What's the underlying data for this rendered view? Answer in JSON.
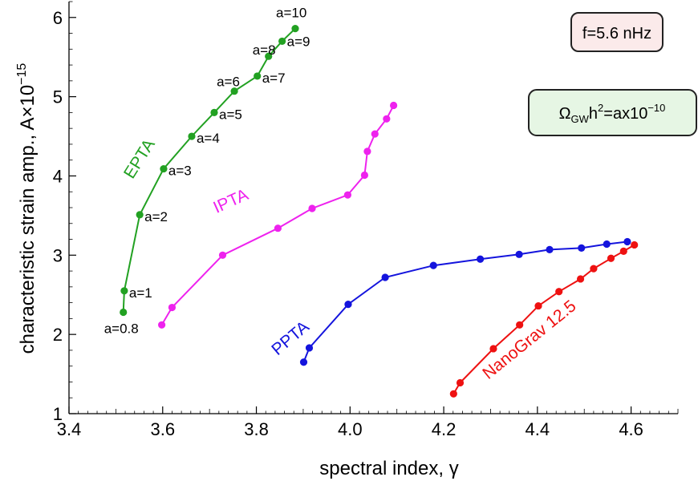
{
  "chart_data": {
    "type": "line",
    "xlabel": "spectral index, γ",
    "ylabel": "characteristic strain amp., A×10",
    "ylabel_exponent": "−15",
    "xlim": [
      3.4,
      4.7
    ],
    "ylim": [
      1.0,
      6.2
    ],
    "xticks": [
      "3.4",
      "3.6",
      "3.8",
      "4.0",
      "4.2",
      "4.4",
      "4.6"
    ],
    "yticks": [
      "1",
      "2",
      "3",
      "4",
      "5",
      "6"
    ],
    "grid": false,
    "series": [
      {
        "name": "EPTA",
        "color": "#22a122",
        "points": [
          [
            3.516,
            2.28
          ],
          [
            3.518,
            2.55
          ],
          [
            3.551,
            3.51
          ],
          [
            3.602,
            4.09
          ],
          [
            3.662,
            4.5
          ],
          [
            3.71,
            4.8
          ],
          [
            3.753,
            5.07
          ],
          [
            3.802,
            5.26
          ],
          [
            3.826,
            5.51
          ],
          [
            3.855,
            5.7
          ],
          [
            3.883,
            5.86
          ]
        ],
        "point_labels": [
          "a=0.8",
          "a=1",
          "a=2",
          "a=3",
          "a=4",
          "a=5",
          "a=6",
          "a=7",
          "a=8",
          "a=9",
          "a=10"
        ]
      },
      {
        "name": "IPTA",
        "color": "#ee22ee",
        "points": [
          [
            3.598,
            2.12
          ],
          [
            3.62,
            2.34
          ],
          [
            3.728,
            3.0
          ],
          [
            3.846,
            3.34
          ],
          [
            3.919,
            3.59
          ],
          [
            3.995,
            3.76
          ],
          [
            4.031,
            4.01
          ],
          [
            4.037,
            4.31
          ],
          [
            4.053,
            4.53
          ],
          [
            4.078,
            4.72
          ],
          [
            4.093,
            4.89
          ]
        ]
      },
      {
        "name": "PPTA",
        "color": "#1414dd",
        "points": [
          [
            3.901,
            1.65
          ],
          [
            3.913,
            1.83
          ],
          [
            3.996,
            2.38
          ],
          [
            4.075,
            2.72
          ],
          [
            4.178,
            2.87
          ],
          [
            4.278,
            2.95
          ],
          [
            4.361,
            3.01
          ],
          [
            4.426,
            3.07
          ],
          [
            4.494,
            3.09
          ],
          [
            4.548,
            3.14
          ],
          [
            4.592,
            3.17
          ]
        ]
      },
      {
        "name": "NanoGrav 12.5",
        "color": "#ee1111",
        "points": [
          [
            4.221,
            1.25
          ],
          [
            4.235,
            1.39
          ],
          [
            4.306,
            1.82
          ],
          [
            4.362,
            2.12
          ],
          [
            4.402,
            2.36
          ],
          [
            4.446,
            2.54
          ],
          [
            4.492,
            2.7
          ],
          [
            4.52,
            2.83
          ],
          [
            4.557,
            2.96
          ],
          [
            4.584,
            3.05
          ],
          [
            4.607,
            3.13
          ]
        ]
      }
    ],
    "annotations": {
      "frequency": "f=5.6 nHz",
      "omega_prefix": "Ω",
      "omega_subscript": "GW",
      "omega_mid": "h",
      "omega_sup": "2",
      "omega_tail": "=ax10",
      "omega_exp": "−10"
    },
    "annotation_colors": {
      "frequency_bg": "#fbeaea",
      "omega_bg": "#e6f6e4"
    }
  }
}
